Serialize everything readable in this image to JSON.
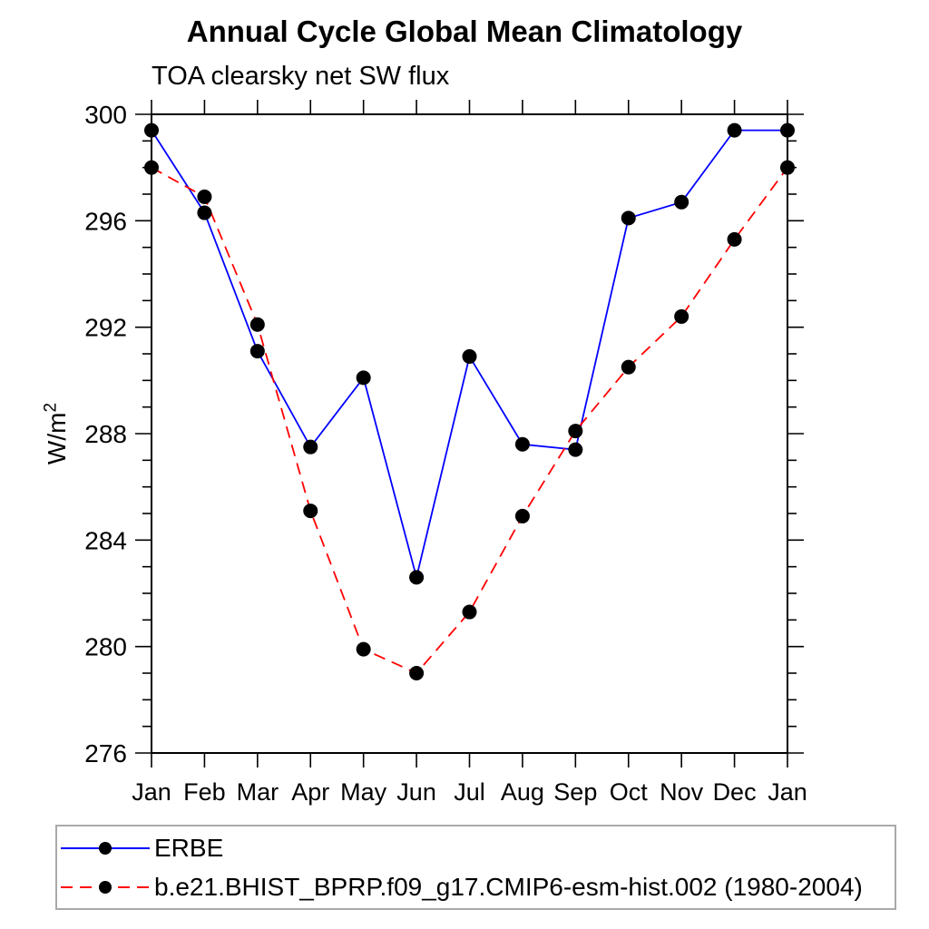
{
  "chart_data": {
    "type": "line",
    "title": "Annual Cycle Global Mean Climatology",
    "subtitle": "TOA clearsky net SW flux",
    "ylabel": "W/m²",
    "ylabel_base": "W/m",
    "ylabel_exponent": "2",
    "categories": [
      "Jan",
      "Feb",
      "Mar",
      "Apr",
      "May",
      "Jun",
      "Jul",
      "Aug",
      "Sep",
      "Oct",
      "Nov",
      "Dec",
      "Jan"
    ],
    "ylim": [
      276,
      300
    ],
    "ytick_major_step": 4,
    "ytick_minor_step": 1,
    "ytick_labels": [
      "276",
      "280",
      "284",
      "288",
      "292",
      "296",
      "300"
    ],
    "grid": false,
    "legend_position": "bottom-left",
    "marker": {
      "shape": "circle",
      "color": "#000000"
    },
    "axis_color": "#000000",
    "series": [
      {
        "name": "ERBE",
        "color": "#0000ff",
        "style": "solid",
        "values": [
          299.4,
          296.3,
          291.1,
          287.5,
          290.1,
          282.6,
          290.9,
          287.6,
          287.4,
          296.1,
          296.7,
          299.4,
          299.4
        ]
      },
      {
        "name": "b.e21.BHIST_BPRP.f09_g17.CMIP6-esm-hist.002 (1980-2004)",
        "color": "#ff0000",
        "style": "dashed",
        "values": [
          298.0,
          296.9,
          292.1,
          285.1,
          279.9,
          279.0,
          281.3,
          284.9,
          288.1,
          290.5,
          292.4,
          295.3,
          298.0
        ]
      }
    ]
  }
}
